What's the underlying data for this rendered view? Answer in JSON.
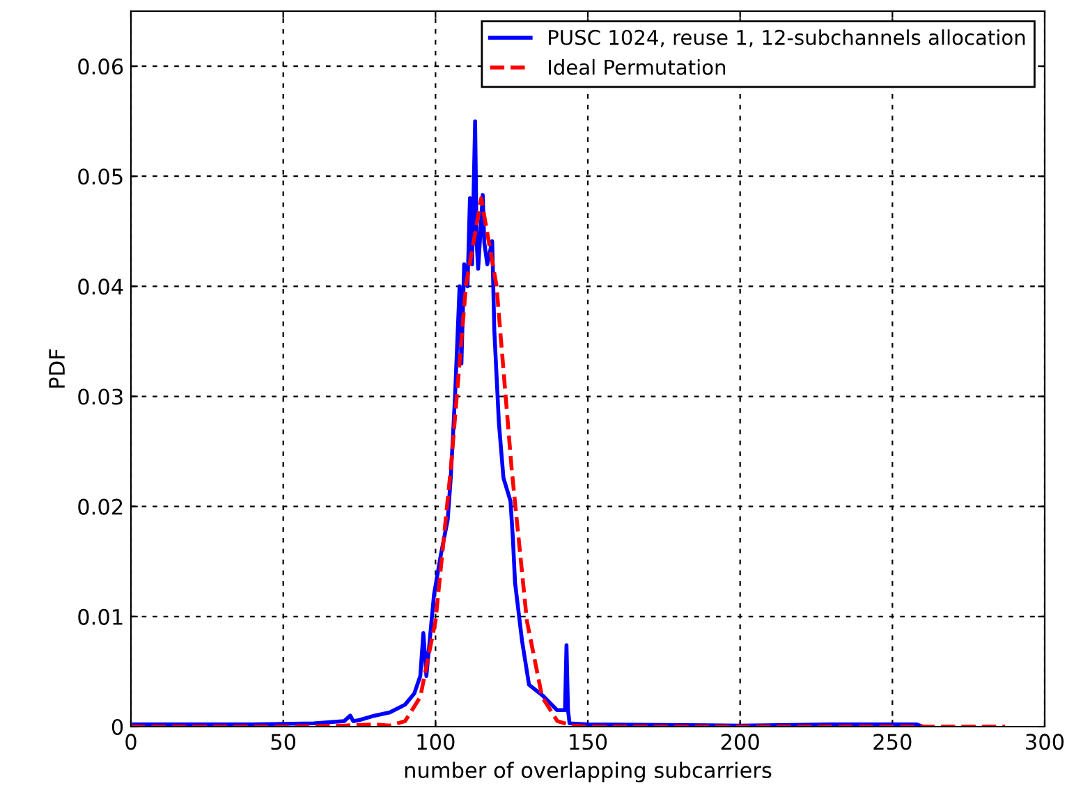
{
  "chart_data": {
    "type": "line",
    "xlabel": "number of overlapping subcarriers",
    "ylabel": "PDF",
    "xlim": [
      0,
      300
    ],
    "ylim": [
      0,
      0.065
    ],
    "xticks": [
      0,
      50,
      100,
      150,
      200,
      250,
      300
    ],
    "yticks": [
      0,
      0.01,
      0.02,
      0.03,
      0.04,
      0.05,
      0.06
    ],
    "grid": true,
    "legend": "top right",
    "series": [
      {
        "name": "PUSC 1024, reuse 1, 12-subchannels allocation",
        "color": "#0000ff",
        "line_style": "solid",
        "x": [
          1,
          20,
          40,
          60,
          70,
          72,
          73,
          75,
          80,
          85,
          90,
          93,
          95,
          96,
          97,
          99.5,
          101.8,
          104,
          105,
          106.4,
          107.9,
          108.5,
          109.4,
          110.5,
          111.3,
          112,
          113,
          113.5,
          114,
          115.5,
          116,
          117,
          118.6,
          119.3,
          120.8,
          122.3,
          124.6,
          125.4,
          126.1,
          128.4,
          130.7,
          135.3,
          139.9,
          142.5,
          143,
          143.5,
          144,
          150,
          200,
          230,
          258,
          260
        ],
        "values": [
          0.0002,
          0.0002,
          0.0002,
          0.0003,
          0.0005,
          0.001,
          0.0005,
          0.0006,
          0.001,
          0.0013,
          0.002,
          0.003,
          0.0046,
          0.0085,
          0.0046,
          0.012,
          0.0157,
          0.0188,
          0.0226,
          0.03,
          0.04,
          0.033,
          0.042,
          0.04,
          0.048,
          0.042,
          0.055,
          0.044,
          0.0416,
          0.0483,
          0.044,
          0.042,
          0.0441,
          0.036,
          0.0276,
          0.0226,
          0.0205,
          0.0171,
          0.0131,
          0.0078,
          0.0038,
          0.0028,
          0.0015,
          0.0015,
          0.0074,
          0.0015,
          0.0003,
          0.0002,
          0.0001,
          0.0002,
          0.0002,
          0
        ]
      },
      {
        "name": "Ideal Permutation",
        "color": "#ff0000",
        "line_style": "dashed",
        "x": [
          0,
          50,
          70,
          80,
          85,
          90,
          95,
          100,
          105,
          110,
          115,
          120,
          125,
          130,
          135,
          140,
          145,
          150,
          200,
          250,
          287
        ],
        "values": [
          0,
          0,
          0.0001,
          0.0002,
          0.0001,
          0.0005,
          0.0027,
          0.0096,
          0.0234,
          0.0401,
          0.048,
          0.0401,
          0.0234,
          0.0096,
          0.0027,
          0.0005,
          0.0001,
          0,
          0,
          0,
          0
        ]
      }
    ]
  }
}
